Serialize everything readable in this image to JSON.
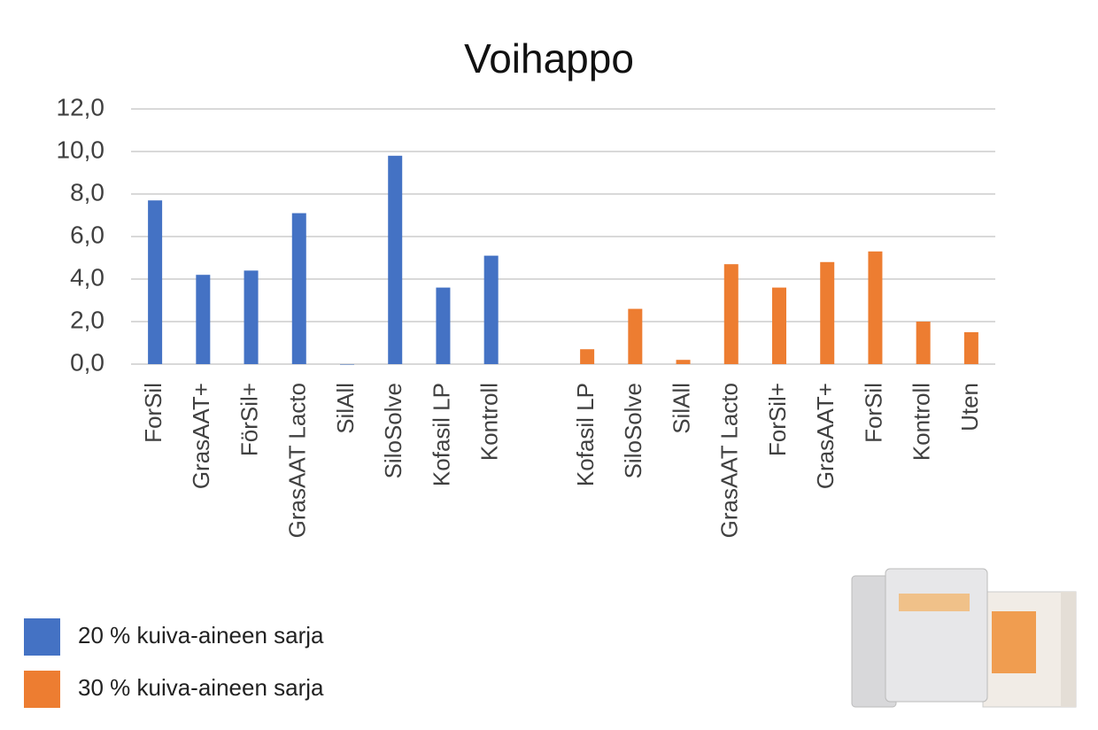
{
  "chart_data": {
    "type": "bar",
    "title": "Voihappo",
    "categories": [
      "ForSil",
      "GrasAAT+",
      "FörSil+",
      "GrasAAT Lacto",
      "SilAll",
      "SiloSolve",
      "Kofasil LP",
      "Kontroll",
      null,
      "Kofasil LP",
      "SiloSolve",
      "SilAll",
      "GrasAAT Lacto",
      "ForSil+",
      "GrasAAT+",
      "ForSil",
      "Kontroll",
      "Uten"
    ],
    "series": [
      {
        "name": "20 % kuiva-aineen sarja",
        "color": "#4472c4",
        "values": [
          7.7,
          4.2,
          4.4,
          7.1,
          0,
          9.8,
          3.6,
          5.1,
          null,
          null,
          null,
          null,
          null,
          null,
          null,
          null,
          null,
          null
        ]
      },
      {
        "name": "30 % kuiva-aineen sarja",
        "color": "#ed7d31",
        "values": [
          null,
          null,
          null,
          null,
          null,
          null,
          null,
          null,
          null,
          0.7,
          2.6,
          0.2,
          4.7,
          3.6,
          4.8,
          5.3,
          2.0,
          1.5
        ]
      }
    ],
    "ylim": [
      0,
      12
    ],
    "yticks": [
      {
        "value": 0,
        "label": "0,0"
      },
      {
        "value": 2,
        "label": "2,0"
      },
      {
        "value": 4,
        "label": "4,0"
      },
      {
        "value": 6,
        "label": "6,0"
      },
      {
        "value": 8,
        "label": "8,0"
      },
      {
        "value": 10,
        "label": "10,0"
      },
      {
        "value": 12,
        "label": "12,0"
      }
    ],
    "grid": true,
    "legend": "bottom-left"
  }
}
